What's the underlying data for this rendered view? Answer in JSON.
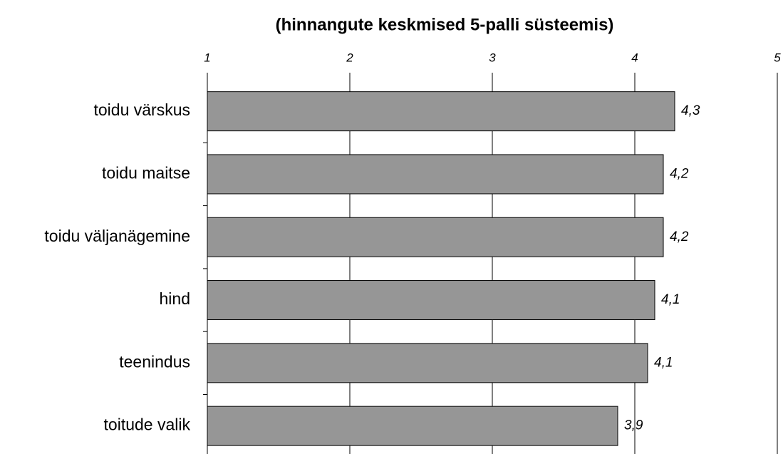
{
  "chart_data": {
    "type": "bar",
    "orientation": "horizontal",
    "title": "(hinnangute keskmised 5-palli süsteemis)",
    "categories": [
      "toidu värskus",
      "toidu maitse",
      "toidu väljanägemine",
      "hind",
      "teenindus",
      "toitude valik"
    ],
    "values": [
      4.28,
      4.2,
      4.2,
      4.14,
      4.09,
      3.88
    ],
    "value_labels": [
      "4,3",
      "4,2",
      "4,2",
      "4,1",
      "4,1",
      "3,9"
    ],
    "color": "#969696",
    "xlim": [
      1,
      5
    ],
    "xticks": [
      1,
      2,
      3,
      4,
      5
    ],
    "grid": true
  }
}
